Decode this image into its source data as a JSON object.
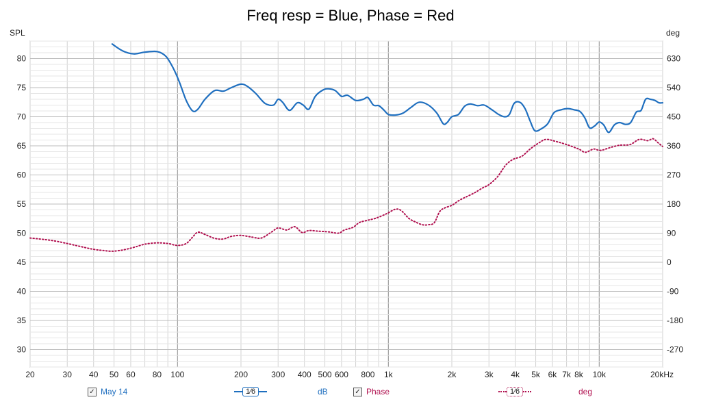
{
  "chart_data": {
    "type": "line",
    "title": "Freq resp = Blue, Phase = Red",
    "x_scale": "log",
    "x_range": [
      20,
      20000
    ],
    "y_left": {
      "label": "SPL",
      "range": [
        27,
        83
      ],
      "ticks": [
        80,
        75,
        70,
        65,
        60,
        55,
        50,
        45,
        40,
        35,
        30
      ]
    },
    "y_right": {
      "label": "deg",
      "ticks": [
        630,
        540,
        450,
        360,
        270,
        180,
        90,
        0,
        -90,
        -180,
        -270
      ]
    },
    "x_ticks": [
      {
        "v": 20,
        "label": "20"
      },
      {
        "v": 30,
        "label": "30"
      },
      {
        "v": 40,
        "label": "40"
      },
      {
        "v": 50,
        "label": "50"
      },
      {
        "v": 60,
        "label": "60"
      },
      {
        "v": 80,
        "label": "80"
      },
      {
        "v": 100,
        "label": "100"
      },
      {
        "v": 200,
        "label": "200"
      },
      {
        "v": 300,
        "label": "300"
      },
      {
        "v": 400,
        "label": "400"
      },
      {
        "v": 500,
        "label": "500"
      },
      {
        "v": 600,
        "label": "600"
      },
      {
        "v": 800,
        "label": "800"
      },
      {
        "v": 1000,
        "label": "1k"
      },
      {
        "v": 2000,
        "label": "2k"
      },
      {
        "v": 3000,
        "label": "3k"
      },
      {
        "v": 4000,
        "label": "4k"
      },
      {
        "v": 5000,
        "label": "5k"
      },
      {
        "v": 6000,
        "label": "6k"
      },
      {
        "v": 7000,
        "label": "7k"
      },
      {
        "v": 8000,
        "label": "8k"
      },
      {
        "v": 10000,
        "label": "10k"
      },
      {
        "v": 20000,
        "label": "20kHz"
      }
    ],
    "grid": true,
    "series": [
      {
        "name": "May 14",
        "axis": "left",
        "color": "#1f6fbf",
        "style": "solid",
        "points": [
          [
            49,
            82.5
          ],
          [
            55,
            81.3
          ],
          [
            62,
            80.8
          ],
          [
            70,
            81.1
          ],
          [
            80,
            81.2
          ],
          [
            88,
            80.4
          ],
          [
            95,
            78.5
          ],
          [
            102,
            76.0
          ],
          [
            110,
            72.8
          ],
          [
            118,
            71.0
          ],
          [
            125,
            71.3
          ],
          [
            135,
            73.0
          ],
          [
            150,
            74.5
          ],
          [
            165,
            74.4
          ],
          [
            180,
            75.0
          ],
          [
            200,
            75.6
          ],
          [
            215,
            75.2
          ],
          [
            235,
            74.0
          ],
          [
            260,
            72.3
          ],
          [
            285,
            72.0
          ],
          [
            300,
            73.0
          ],
          [
            315,
            72.5
          ],
          [
            340,
            71.1
          ],
          [
            370,
            72.4
          ],
          [
            395,
            72.0
          ],
          [
            420,
            71.3
          ],
          [
            450,
            73.5
          ],
          [
            490,
            74.6
          ],
          [
            520,
            74.8
          ],
          [
            560,
            74.5
          ],
          [
            600,
            73.5
          ],
          [
            640,
            73.7
          ],
          [
            700,
            72.8
          ],
          [
            760,
            73.0
          ],
          [
            800,
            73.3
          ],
          [
            850,
            72.0
          ],
          [
            900,
            71.9
          ],
          [
            950,
            71.2
          ],
          [
            1000,
            70.4
          ],
          [
            1080,
            70.3
          ],
          [
            1170,
            70.6
          ],
          [
            1280,
            71.6
          ],
          [
            1400,
            72.5
          ],
          [
            1550,
            72.0
          ],
          [
            1700,
            70.6
          ],
          [
            1820,
            68.8
          ],
          [
            1900,
            69.0
          ],
          [
            2000,
            70.0
          ],
          [
            2150,
            70.4
          ],
          [
            2300,
            71.8
          ],
          [
            2450,
            72.2
          ],
          [
            2650,
            71.9
          ],
          [
            2850,
            72.0
          ],
          [
            3100,
            71.2
          ],
          [
            3300,
            70.5
          ],
          [
            3550,
            70.0
          ],
          [
            3750,
            70.4
          ],
          [
            3950,
            72.3
          ],
          [
            4200,
            72.5
          ],
          [
            4450,
            71.4
          ],
          [
            4700,
            69.3
          ],
          [
            4950,
            67.6
          ],
          [
            5300,
            67.9
          ],
          [
            5700,
            68.8
          ],
          [
            6100,
            70.7
          ],
          [
            6600,
            71.2
          ],
          [
            7100,
            71.4
          ],
          [
            7600,
            71.2
          ],
          [
            8100,
            70.9
          ],
          [
            8550,
            69.8
          ],
          [
            9000,
            68.1
          ],
          [
            9500,
            68.4
          ],
          [
            10000,
            69.1
          ],
          [
            10500,
            68.6
          ],
          [
            11100,
            67.3
          ],
          [
            11800,
            68.6
          ],
          [
            12500,
            69.0
          ],
          [
            13300,
            68.7
          ],
          [
            14100,
            69.0
          ],
          [
            15000,
            70.8
          ],
          [
            15800,
            71.1
          ],
          [
            16600,
            73.0
          ],
          [
            17500,
            73.0
          ],
          [
            18400,
            72.8
          ],
          [
            19200,
            72.4
          ],
          [
            20000,
            72.4
          ]
        ]
      },
      {
        "name": "Phase",
        "axis": "right",
        "color": "#b0104f",
        "style": "dotted",
        "points": [
          [
            20,
            75
          ],
          [
            25,
            68
          ],
          [
            30,
            58
          ],
          [
            35,
            48
          ],
          [
            40,
            40
          ],
          [
            45,
            36
          ],
          [
            49,
            34
          ],
          [
            55,
            38
          ],
          [
            62,
            46
          ],
          [
            70,
            56
          ],
          [
            80,
            60
          ],
          [
            90,
            58
          ],
          [
            100,
            52
          ],
          [
            110,
            58
          ],
          [
            118,
            78
          ],
          [
            125,
            93
          ],
          [
            135,
            86
          ],
          [
            150,
            74
          ],
          [
            165,
            72
          ],
          [
            180,
            80
          ],
          [
            200,
            83
          ],
          [
            225,
            78
          ],
          [
            250,
            75
          ],
          [
            280,
            94
          ],
          [
            300,
            106
          ],
          [
            330,
            100
          ],
          [
            360,
            110
          ],
          [
            390,
            92
          ],
          [
            420,
            98
          ],
          [
            470,
            96
          ],
          [
            520,
            94
          ],
          [
            580,
            90
          ],
          [
            620,
            100
          ],
          [
            680,
            108
          ],
          [
            730,
            123
          ],
          [
            800,
            130
          ],
          [
            870,
            136
          ],
          [
            950,
            146
          ],
          [
            1000,
            153
          ],
          [
            1080,
            164
          ],
          [
            1150,
            160
          ],
          [
            1250,
            136
          ],
          [
            1350,
            124
          ],
          [
            1450,
            116
          ],
          [
            1550,
            116
          ],
          [
            1650,
            122
          ],
          [
            1750,
            156
          ],
          [
            1850,
            168
          ],
          [
            2000,
            176
          ],
          [
            2150,
            190
          ],
          [
            2300,
            200
          ],
          [
            2550,
            214
          ],
          [
            2800,
            230
          ],
          [
            3000,
            240
          ],
          [
            3300,
            265
          ],
          [
            3600,
            300
          ],
          [
            3900,
            318
          ],
          [
            4300,
            328
          ],
          [
            4700,
            350
          ],
          [
            5200,
            370
          ],
          [
            5600,
            380
          ],
          [
            6200,
            374
          ],
          [
            7000,
            364
          ],
          [
            8000,
            350
          ],
          [
            8600,
            340
          ],
          [
            9400,
            350
          ],
          [
            10000,
            346
          ],
          [
            10500,
            348
          ],
          [
            11200,
            354
          ],
          [
            12500,
            362
          ],
          [
            14000,
            364
          ],
          [
            15500,
            380
          ],
          [
            17000,
            376
          ],
          [
            18000,
            382
          ],
          [
            19000,
            370
          ],
          [
            20000,
            358
          ]
        ]
      }
    ]
  },
  "legend": {
    "series1_label": "May 14",
    "smoothing1": "1⁄6",
    "unit1": "dB",
    "series2_label": "Phase",
    "smoothing2": "1⁄6",
    "unit2": "deg",
    "check_glyph": "✓"
  }
}
